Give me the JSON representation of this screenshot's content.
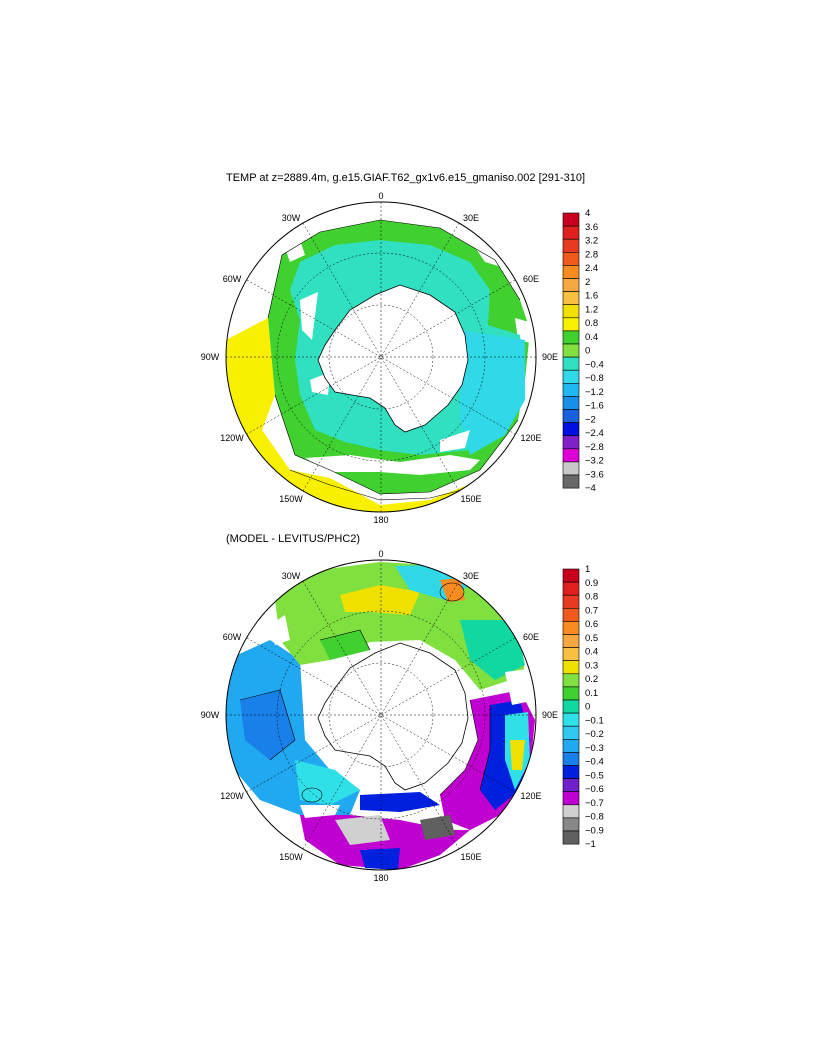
{
  "panels": [
    {
      "title": "TEMP at z=2889.4m, g.e15.GIAF.T62_gx1v6.e15_gmaniso.002 [291-310]",
      "lon_labels": {
        "n": "0",
        "nne": "30E",
        "ene": "60E",
        "e": "90E",
        "ese": "120E",
        "sse": "150E",
        "s": "180",
        "ssw": "150W",
        "wsw": "120W",
        "w": "90W",
        "wnw": "60W",
        "nnw": "30W"
      },
      "colorbar": {
        "labels": [
          "4",
          "3.6",
          "3.2",
          "2.8",
          "2.4",
          "2",
          "1.6",
          "1.2",
          "0.8",
          "0.4",
          "0",
          "−0.4",
          "−0.8",
          "−1.2",
          "−1.6",
          "−2",
          "−2.4",
          "−2.8",
          "−3.2",
          "−3.6",
          "−4"
        ],
        "colors": [
          "#c8001e",
          "#e0201e",
          "#e83a22",
          "#f05a1c",
          "#f88c20",
          "#f8a840",
          "#f8c040",
          "#f0e000",
          "#f8f000",
          "#40d030",
          "#80e040",
          "#30e0c0",
          "#30d8e8",
          "#20b8f0",
          "#1890e8",
          "#1860e0",
          "#0010e0",
          "#8020c8",
          "#e000d8",
          "#c8c8c8",
          "#686868"
        ]
      }
    },
    {
      "title": "(MODEL - LEVITUS/PHC2)",
      "lon_labels": {
        "n": "0",
        "nne": "30E",
        "ene": "60E",
        "e": "90E",
        "ese": "120E",
        "sse": "150E",
        "s": "180",
        "ssw": "150W",
        "wsw": "120W",
        "w": "90W",
        "wnw": "60W",
        "nnw": "30W"
      },
      "colorbar": {
        "labels": [
          "1",
          "0.9",
          "0.8",
          "0.7",
          "0.6",
          "0.5",
          "0.4",
          "0.3",
          "0.2",
          "0.1",
          "0",
          "−0.1",
          "−0.2",
          "−0.3",
          "−0.4",
          "−0.5",
          "−0.6",
          "−0.7",
          "−0.8",
          "−0.9",
          "−1"
        ],
        "colors": [
          "#c8001e",
          "#e0201e",
          "#e83a22",
          "#f05a1c",
          "#f88c20",
          "#f8a840",
          "#f8c040",
          "#f0e000",
          "#80e040",
          "#40d030",
          "#10d8a0",
          "#30e0e8",
          "#30c8f0",
          "#20a8f0",
          "#1880e8",
          "#0020e0",
          "#7020c8",
          "#c000d0",
          "#d0d0d0",
          "#888888",
          "#606060"
        ]
      }
    }
  ]
}
